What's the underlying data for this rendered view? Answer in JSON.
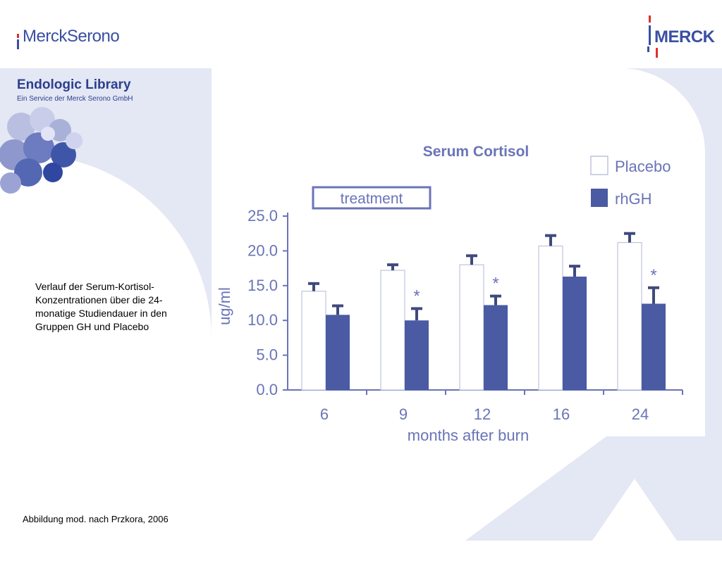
{
  "header": {
    "left_logo_text": "MerckSerono",
    "right_logo_text": "MERCK"
  },
  "library": {
    "title": "Endologic Library",
    "subtitle": "Ein Service der Merck Serono GmbH"
  },
  "caption": "Verlauf der Serum-Kortisol-Konzentrationen über die 24-monatige Studiendauer in den Gruppen GH und Placebo",
  "source": "Abbildung mod. nach Przkora, 2006",
  "colors": {
    "accent": "#3a4fa1",
    "background_band": "#e4e7f4",
    "rhgh_bar": "#4a5aa3",
    "chart_text": "#6a74b8"
  },
  "chart_data": {
    "type": "bar",
    "title": "Serum Cortisol",
    "annotation": "treatment",
    "xlabel": "months after burn",
    "ylabel": "ug/ml",
    "ylim": [
      0,
      25
    ],
    "yticks": [
      "0.0",
      "5.0",
      "10.0",
      "15.0",
      "20.0",
      "25.0"
    ],
    "categories": [
      "6",
      "9",
      "12",
      "16",
      "24"
    ],
    "series": [
      {
        "name": "Placebo",
        "color": "#ffffff",
        "values": [
          14.2,
          17.2,
          18.0,
          20.7,
          21.2
        ],
        "errors": [
          1.1,
          0.8,
          1.3,
          1.5,
          1.3
        ]
      },
      {
        "name": "rhGH",
        "color": "#4a5aa3",
        "values": [
          10.8,
          10.0,
          12.2,
          16.3,
          12.4
        ],
        "errors": [
          1.3,
          1.7,
          1.3,
          1.5,
          2.3
        ]
      }
    ],
    "significance": [
      "",
      "*",
      "*",
      "",
      "*"
    ],
    "legend_position": "top-right",
    "grid": false
  }
}
